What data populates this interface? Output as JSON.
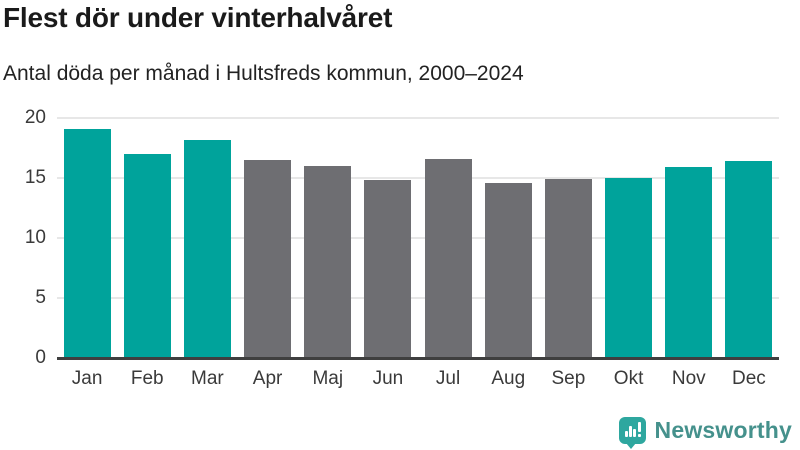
{
  "header": {
    "title": "Flest dör under vinterhalvåret",
    "subtitle": "Antal döda per månad i Hultsfreds kommun, 2000–2024"
  },
  "chart_data": {
    "type": "bar",
    "title": "Flest dör under vinterhalvåret",
    "subtitle": "Antal döda per månad i Hultsfreds kommun, 2000–2024",
    "categories": [
      "Jan",
      "Feb",
      "Mar",
      "Apr",
      "Maj",
      "Jun",
      "Jul",
      "Aug",
      "Sep",
      "Okt",
      "Nov",
      "Dec"
    ],
    "values": [
      19.1,
      17.0,
      18.2,
      16.5,
      16.0,
      14.8,
      16.6,
      14.6,
      14.9,
      15.0,
      15.9,
      16.4
    ],
    "bar_colors": [
      "#00a39b",
      "#00a39b",
      "#00a39b",
      "#6e6e72",
      "#6e6e72",
      "#6e6e72",
      "#6e6e72",
      "#6e6e72",
      "#6e6e72",
      "#00a39b",
      "#00a39b",
      "#00a39b"
    ],
    "xlabel": "",
    "ylabel": "",
    "ylim": [
      0,
      20
    ],
    "yticks": [
      0,
      5,
      10,
      15,
      20
    ],
    "grid": "horizontal",
    "legend": "none",
    "highlight_meaning": "winter half-year months (Okt–Mar) in teal, summer half-year (Apr–Sep) in gray"
  },
  "colors": {
    "accent_teal": "#00a39b",
    "neutral_gray": "#6e6e72",
    "gridline": "#e7e7e7",
    "axis_line": "#3f3f3f",
    "text_dark": "#1a1a1a",
    "brand_teal": "#45918c"
  },
  "footer": {
    "brand": "Newsworthy",
    "logo_icon": "speech-bubble-bar-chart-exclamation"
  }
}
